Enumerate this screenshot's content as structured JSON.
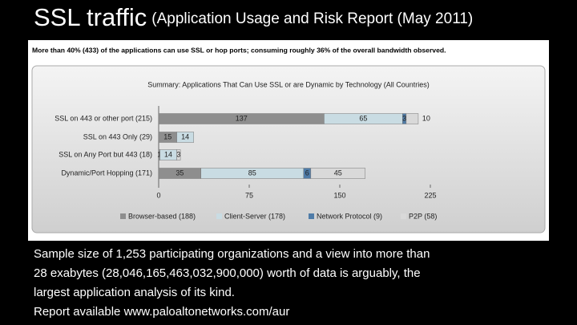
{
  "slide": {
    "title": "SSL traffic",
    "subtitle": "(Application Usage and Risk Report (May 2011)",
    "headline": "More than 40% (433) of the applications can use SSL or hop ports; consuming roughly 36% of the overall bandwidth observed.",
    "body": [
      "Sample size of 1,253 participating organizations and a view into more than",
      "28 exabytes (28,046,165,463,032,900,000) worth of data is arguably, the",
      "largest application analysis of its kind.",
      "Report available www.paloaltonetworks.com/aur"
    ]
  },
  "chart_data": {
    "type": "stacked-hbar",
    "title": "Summary: Applications That Can Use SSL or are Dynamic by Technology (All Countries)",
    "categories": [
      "SSL on 443 or other port (215)",
      "SSL on 443 Only (29)",
      "SSL on Any Port but 443 (18)",
      "Dynamic/Port Hopping (171)"
    ],
    "series": [
      {
        "name": "Browser-based (188)",
        "color": "#8e8e8e",
        "values": [
          137,
          15,
          1,
          35
        ]
      },
      {
        "name": "Client-Server (178)",
        "color": "#c9dce3",
        "values": [
          65,
          14,
          14,
          85
        ]
      },
      {
        "name": "Network Protocol (9)",
        "color": "#4f7ca8",
        "values": [
          3,
          null,
          null,
          6
        ]
      },
      {
        "name": "P2P (58)",
        "color": "#d9d9d9",
        "values": [
          10,
          null,
          3,
          45
        ]
      }
    ],
    "xlim": [
      0,
      225
    ],
    "xticks": [
      0,
      75,
      150,
      225
    ]
  }
}
